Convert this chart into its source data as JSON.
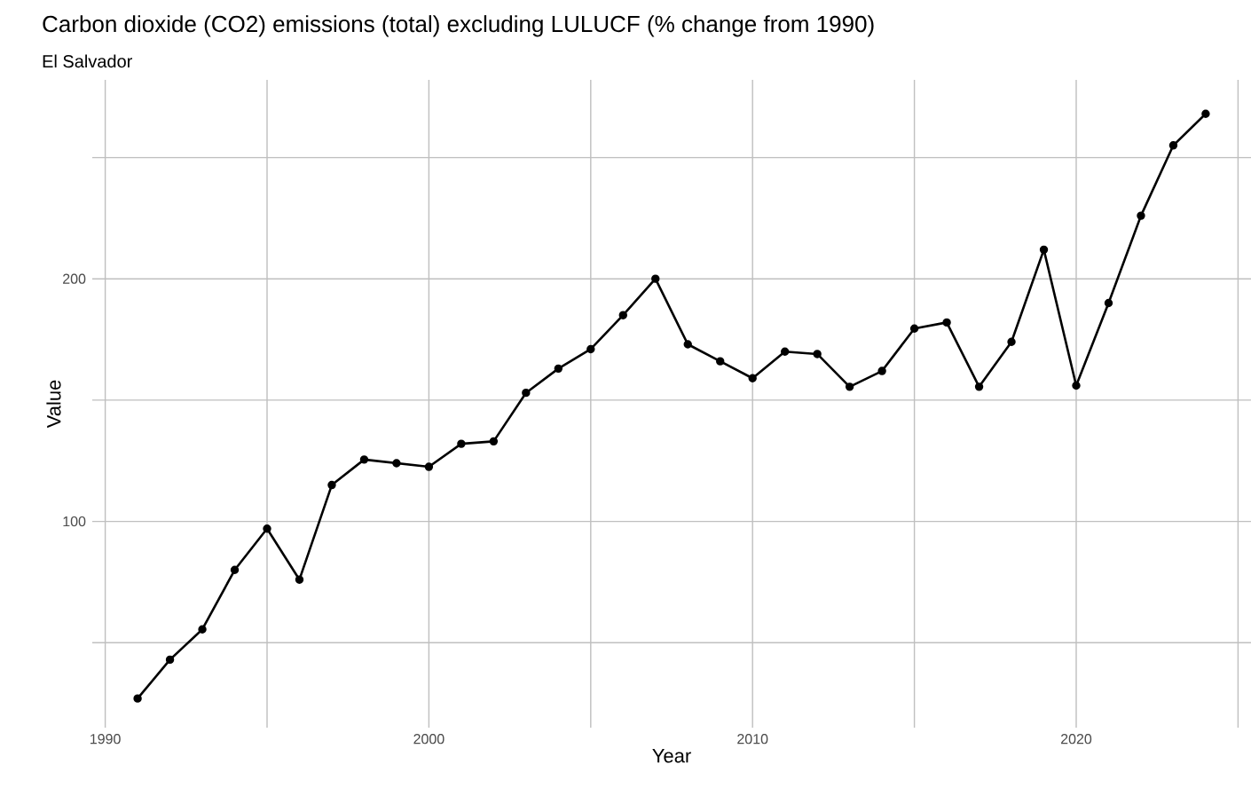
{
  "chart_data": {
    "type": "line",
    "title": "Carbon dioxide (CO2) emissions (total) excluding LULUCF (% change from 1990)",
    "subtitle": "El Salvador",
    "xlabel": "Year",
    "ylabel": "Value",
    "x": [
      1991,
      1992,
      1993,
      1994,
      1995,
      1996,
      1997,
      1998,
      1999,
      2000,
      2001,
      2002,
      2003,
      2004,
      2005,
      2006,
      2007,
      2008,
      2009,
      2010,
      2011,
      2012,
      2013,
      2014,
      2015,
      2016,
      2017,
      2018,
      2019,
      2020,
      2021,
      2022,
      2023,
      2024
    ],
    "series": [
      {
        "color": "#000000",
        "values": [
          27,
          43,
          55.5,
          80,
          97,
          76,
          115,
          125.5,
          124,
          122.5,
          132,
          133,
          153,
          163,
          171,
          185,
          200,
          173,
          166,
          159,
          170,
          169,
          155.5,
          162,
          179.5,
          182,
          155.5,
          174,
          212,
          156,
          190,
          226,
          255,
          268
        ]
      }
    ],
    "xlim": [
      1989.6,
      2025.4
    ],
    "ylim": [
      15,
      282
    ],
    "xticks": [
      1990,
      {
        "value": 1995,
        "label": null
      },
      2000,
      {
        "value": 2005,
        "label": null
      },
      2010,
      {
        "value": 2015,
        "label": null
      },
      2020,
      {
        "value": 2025,
        "label": null
      }
    ],
    "yticks": [
      {
        "value": 50,
        "label": null
      },
      100,
      {
        "value": 150,
        "label": null
      },
      200,
      {
        "value": 250,
        "label": null
      }
    ],
    "grid": true,
    "marker": "circle",
    "line_style": "solid"
  }
}
